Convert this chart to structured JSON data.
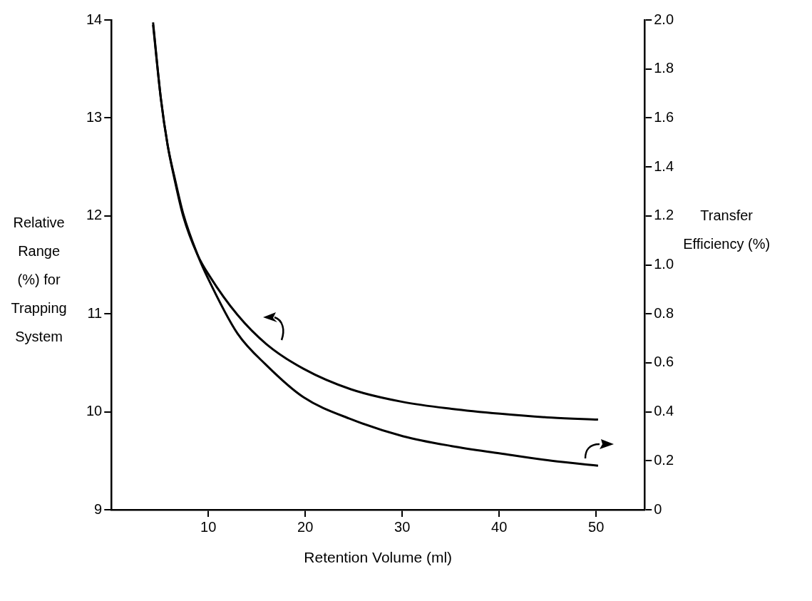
{
  "chart_data": {
    "type": "line",
    "xlabel": "Retention Volume (ml)",
    "ylabel": "Relative Range (%) for Trapping System",
    "y2label": "Transfer Efficiency (%)",
    "xlim": [
      0,
      55
    ],
    "xticks": [
      10,
      20,
      30,
      40,
      50
    ],
    "ylim": [
      9,
      14
    ],
    "yticks": [
      9,
      10,
      11,
      12,
      13,
      14
    ],
    "y2lim": [
      0,
      2
    ],
    "y2ticks": [
      0,
      0.2,
      0.4,
      0.6,
      0.8,
      {
        "value": 1,
        "label": "1.0"
      },
      1.2,
      1.4,
      1.6,
      1.8,
      {
        "value": 2,
        "label": "2.0"
      }
    ],
    "grid": false,
    "legend": false,
    "marker": "none",
    "line_style": "solid",
    "series": [
      {
        "color": "#000000",
        "axis": "y",
        "x": [
          4.3,
          5.1,
          5.8,
          6.5,
          7.4,
          8.9,
          10.1,
          13.0,
          16.0,
          19.8,
          24.7,
          30.1,
          35.1,
          40.1,
          45.4,
          50.2
        ],
        "values": [
          13.95,
          13.2,
          12.72,
          12.38,
          12.0,
          11.6,
          11.39,
          10.99,
          10.69,
          10.44,
          10.23,
          10.1,
          10.03,
          9.98,
          9.94,
          9.92
        ]
      },
      {
        "color": "#000000",
        "axis": "y2",
        "x": [
          4.3,
          5.1,
          5.8,
          6.5,
          7.4,
          8.9,
          9.9,
          13.0,
          16.0,
          19.8,
          24.7,
          30.1,
          35.1,
          40.1,
          45.4,
          50.2
        ],
        "values": [
          1.99,
          1.68,
          1.49,
          1.36,
          1.21,
          1.04,
          0.95,
          0.72,
          0.59,
          0.46,
          0.37,
          0.3,
          0.26,
          0.23,
          0.2,
          0.18
        ]
      }
    ]
  }
}
